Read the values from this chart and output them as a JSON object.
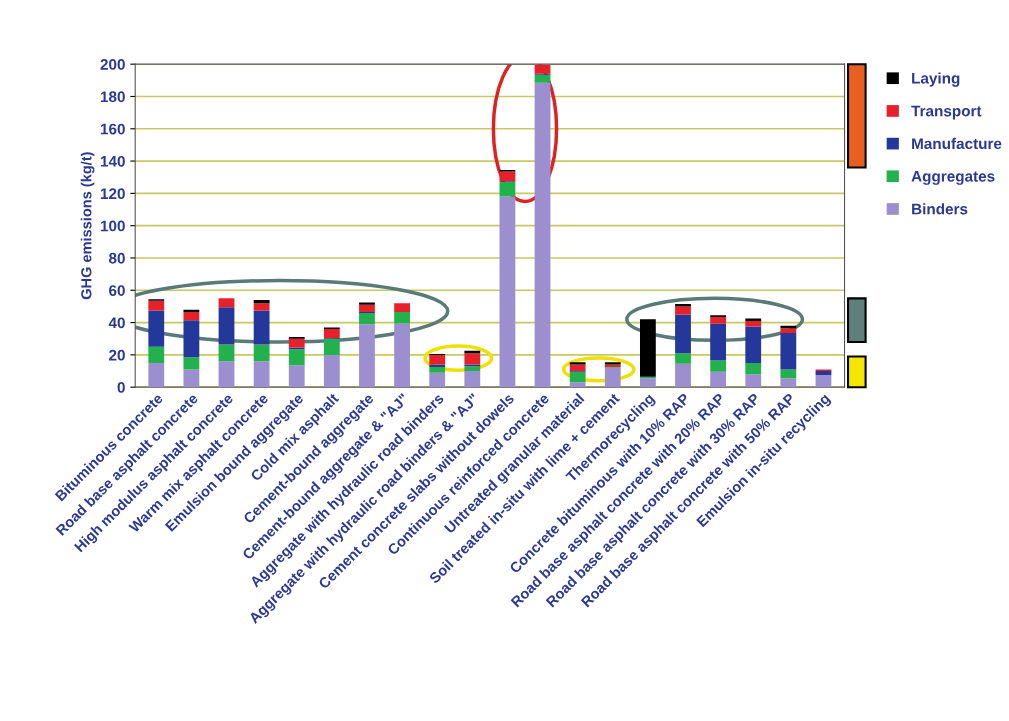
{
  "chart_data": {
    "type": "bar",
    "stacked": true,
    "ylabel": "GHG emissions (kg/t)",
    "categories": [
      "Bituminous concrete",
      "Road base asphalt concrete",
      "High modulus asphalt concrete",
      "Warm mix asphalt concrete",
      "Emulsion bound aggregate",
      "Cold mix asphalt",
      "Cement-bound aggregate",
      "Cement-bound aggregate & \"AJ\"",
      "Aggregate with hydraulic road binders",
      "Aggregate with hydraulic road binders & \"AJ\"",
      "Cement concrete slabs without dowels",
      "Continuous reinforced concrete",
      "Untreated granular material",
      "Soil treated in-situ with lime + cement",
      "Thermorecycling",
      "Concrete bituminous with 10% RAP",
      "Road base asphalt concrete with 20% RAP",
      "Road base asphalt concrete with 30% RAP",
      "Road base asphalt concrete with 50% RAP",
      "Emulsion in-situ recycling"
    ],
    "series": [
      {
        "name": "Binders",
        "color": "#9b8fd0",
        "values": [
          15,
          11,
          16,
          16,
          13.5,
          20,
          39,
          39.5,
          9,
          10,
          118,
          188.5,
          3,
          12,
          5.5,
          14.5,
          9.5,
          8,
          5.5,
          7.5
        ]
      },
      {
        "name": "Aggregates",
        "color": "#22b14c",
        "values": [
          10,
          7.5,
          10.5,
          10.5,
          10,
          10,
          7,
          7,
          3.5,
          3,
          9,
          5,
          6.5,
          0.5,
          1,
          6.5,
          7,
          7,
          5.5,
          0
        ]
      },
      {
        "name": "Manufacture",
        "color": "#23389a",
        "values": [
          22.5,
          23,
          23,
          21,
          1,
          0.5,
          0.5,
          0,
          1.5,
          1,
          0.5,
          0.5,
          0.5,
          0,
          0,
          24,
          23,
          22.5,
          22.5,
          2.5
        ]
      },
      {
        "name": "Transport",
        "color": "#e8202a",
        "values": [
          6,
          5,
          5.5,
          4.5,
          5.5,
          5.5,
          4.5,
          5.5,
          6,
          7,
          6,
          5.5,
          4,
          1.5,
          0,
          5,
          4,
          3.5,
          3,
          1
        ]
      },
      {
        "name": "Laying",
        "color": "#000000",
        "values": [
          1,
          1.5,
          0,
          2,
          1,
          1,
          1.5,
          0,
          0.5,
          1.5,
          1,
          0,
          1.5,
          1.5,
          35.5,
          1.5,
          1,
          1.5,
          1.5,
          0
        ]
      }
    ],
    "ylim": [
      0,
      200
    ],
    "yticks": [
      0,
      20,
      40,
      60,
      80,
      100,
      120,
      140,
      160,
      180,
      200
    ],
    "grid": "y",
    "legend": "right"
  }
}
